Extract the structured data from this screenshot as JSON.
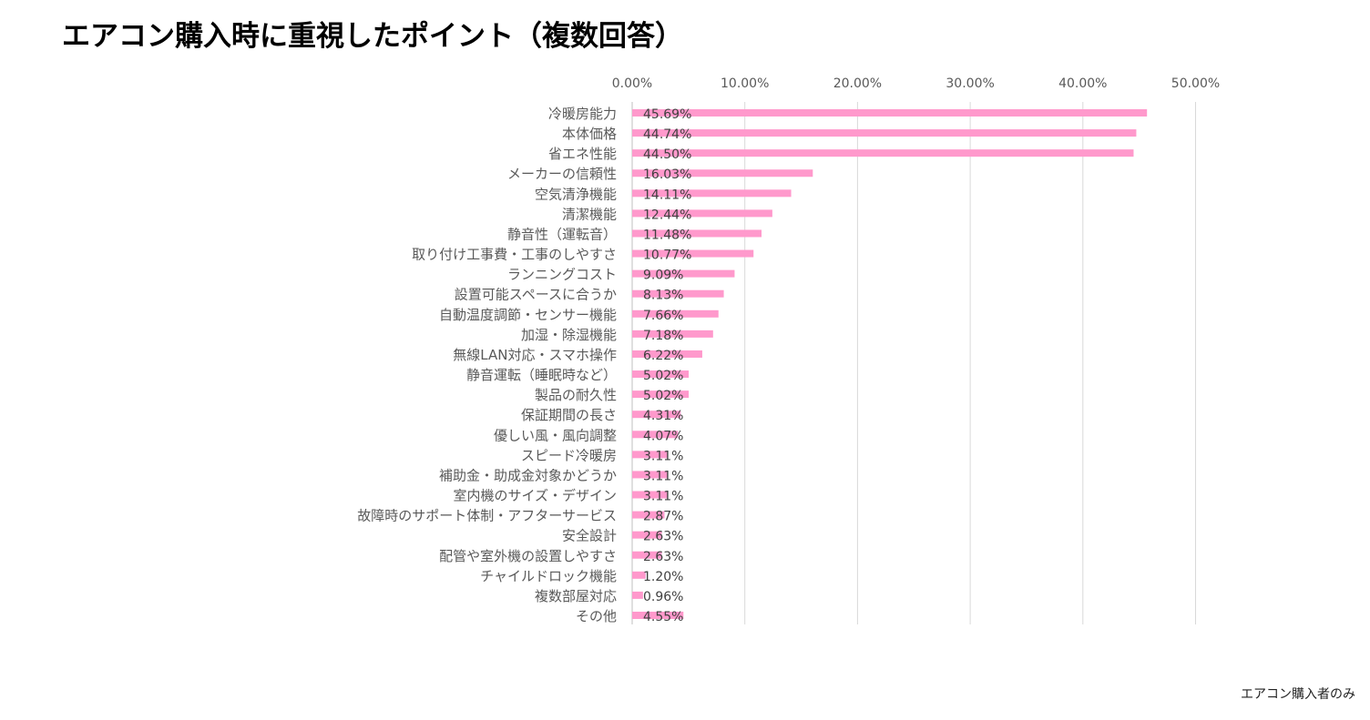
{
  "title": "エアコン購入時に重視したポイント（複数回答）",
  "footnote": "エアコン購入者のみ",
  "colors": {
    "bar": "#ff99cc",
    "grid": "#d9d9d9",
    "axis_text": "#595959"
  },
  "chart_data": {
    "type": "bar",
    "orientation": "horizontal",
    "title": "エアコン購入時に重視したポイント（複数回答）",
    "xlabel": "",
    "ylabel": "",
    "xlim": [
      0,
      50
    ],
    "x_ticks": [
      "0.00%",
      "10.00%",
      "20.00%",
      "30.00%",
      "40.00%",
      "50.00%"
    ],
    "axis_position": "top",
    "grid": true,
    "categories": [
      "冷暖房能力",
      "本体価格",
      "省エネ性能",
      "メーカーの信頼性",
      "空気清浄機能",
      "清潔機能",
      "静音性（運転音）",
      "取り付け工事費・工事のしやすさ",
      "ランニングコスト",
      "設置可能スペースに合うか",
      "自動温度調節・センサー機能",
      "加湿・除湿機能",
      "無線LAN対応・スマホ操作",
      "静音運転（睡眠時など）",
      "製品の耐久性",
      "保証期間の長さ",
      "優しい風・風向調整",
      "スピード冷暖房",
      "補助金・助成金対象かどうか",
      "室内機のサイズ・デザイン",
      "故障時のサポート体制・アフターサービス",
      "安全設計",
      "配管や室外機の設置しやすさ",
      "チャイルドロック機能",
      "複数部屋対応",
      "その他"
    ],
    "values": [
      45.69,
      44.74,
      44.5,
      16.03,
      14.11,
      12.44,
      11.48,
      10.77,
      9.09,
      8.13,
      7.66,
      7.18,
      6.22,
      5.02,
      5.02,
      4.31,
      4.07,
      3.11,
      3.11,
      3.11,
      2.87,
      2.63,
      2.63,
      1.2,
      0.96,
      4.55
    ],
    "value_labels": [
      "45.69%",
      "44.74%",
      "44.50%",
      "16.03%",
      "14.11%",
      "12.44%",
      "11.48%",
      "10.77%",
      "9.09%",
      "8.13%",
      "7.66%",
      "7.18%",
      "6.22%",
      "5.02%",
      "5.02%",
      "4.31%",
      "4.07%",
      "3.11%",
      "3.11%",
      "3.11%",
      "2.87%",
      "2.63%",
      "2.63%",
      "1.20%",
      "0.96%",
      "4.55%"
    ]
  }
}
